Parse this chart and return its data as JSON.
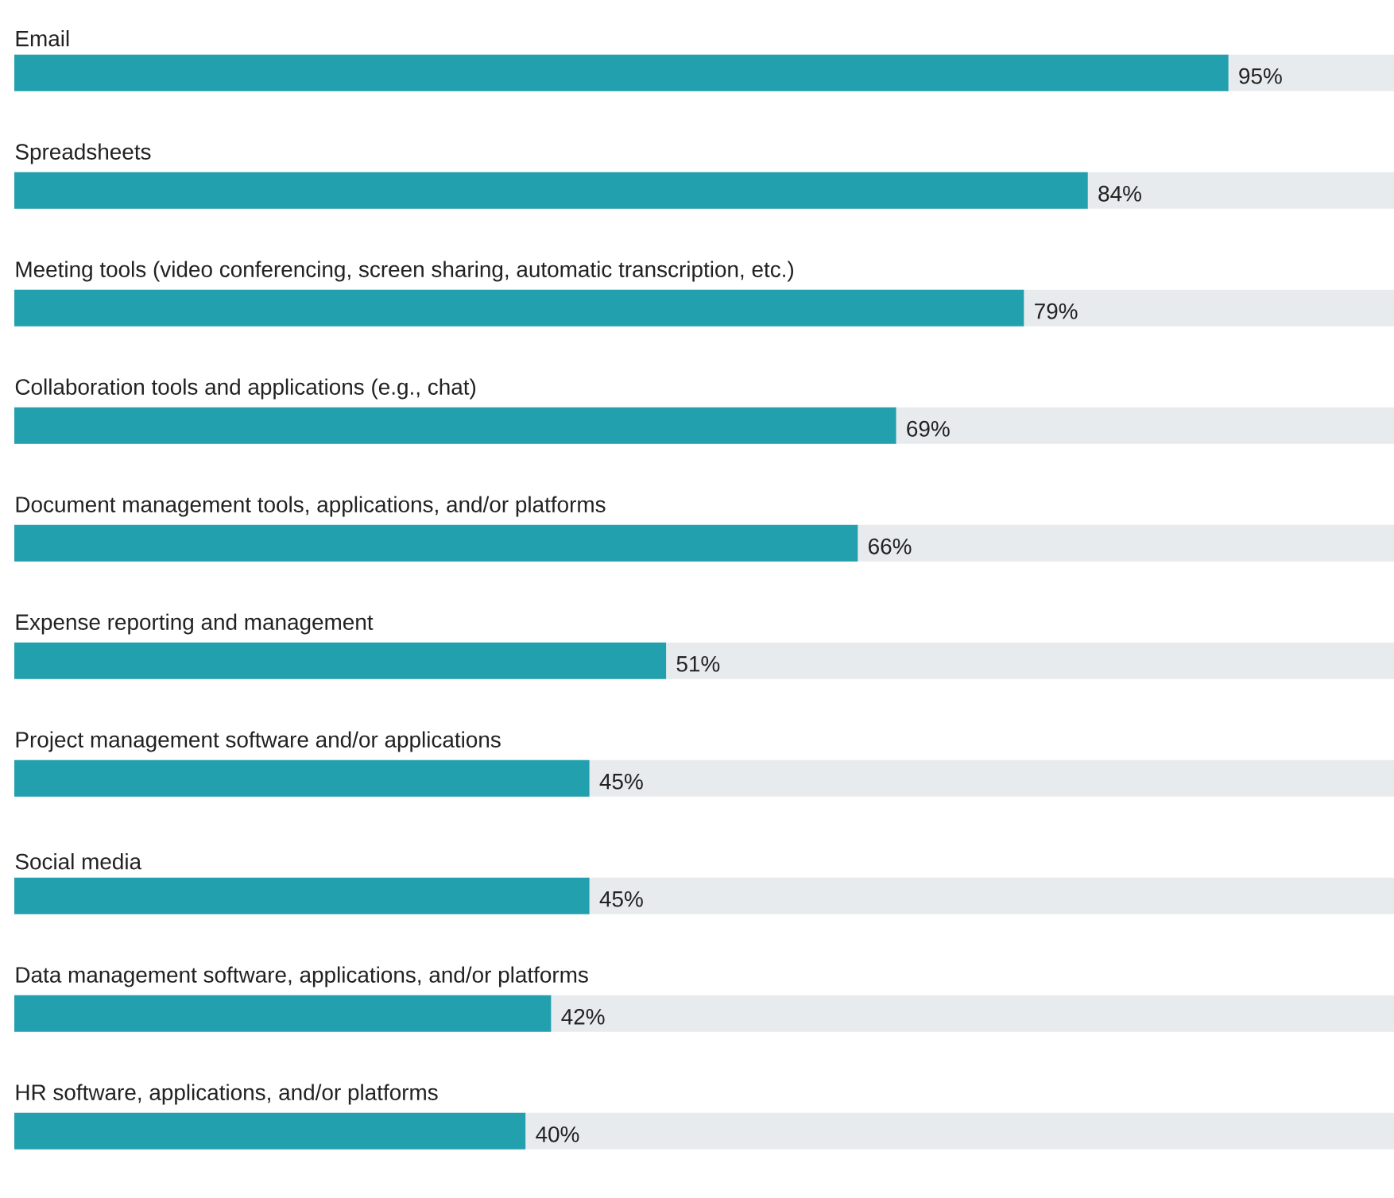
{
  "chart_data": {
    "type": "bar",
    "orientation": "horizontal",
    "categories": [
      "Email",
      "Spreadsheets",
      "Meeting tools (video conferencing, screen sharing, automatic transcription, etc.)",
      "Collaboration tools and applications (e.g., chat)",
      "Document management tools, applications, and/or platforms",
      "Expense reporting and management",
      "Project management software and/or applications",
      "Social media",
      "Data management software, applications, and/or platforms",
      "HR software, applications, and/or platforms"
    ],
    "values": [
      95,
      84,
      79,
      69,
      66,
      51,
      45,
      45,
      42,
      40
    ],
    "value_labels": [
      "95%",
      "84%",
      "79%",
      "69%",
      "66%",
      "51%",
      "45%",
      "45%",
      "42%",
      "40%"
    ],
    "color": "#23a0ad"
  }
}
